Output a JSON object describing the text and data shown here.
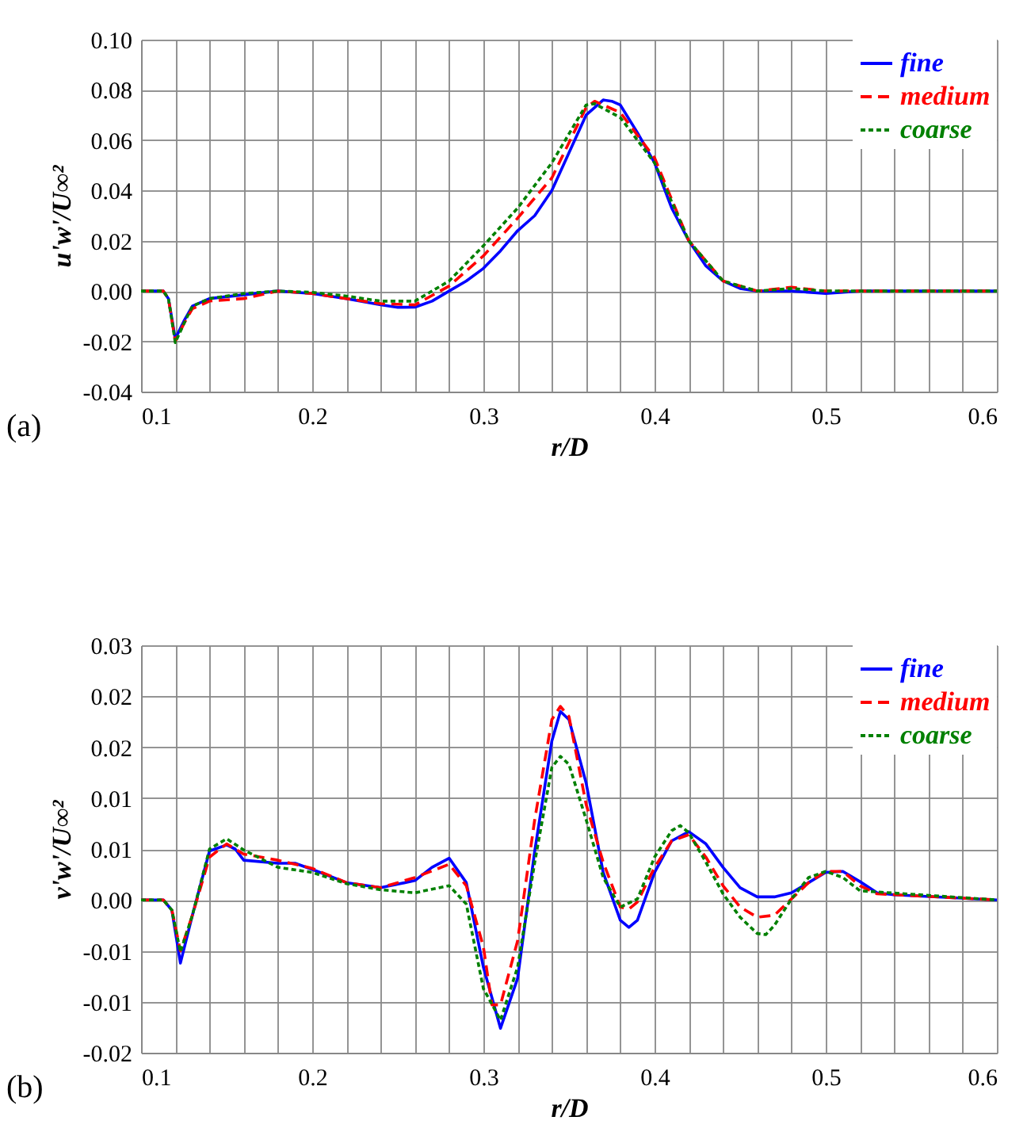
{
  "chart_data": [
    {
      "type": "line",
      "xlabel": "r/D",
      "ylabel": "u'w'/U∞²",
      "annotations": [
        "(a)"
      ],
      "legend": "top right",
      "grid": true,
      "xlim": [
        0.1,
        0.6
      ],
      "xticks": [
        0.1,
        {
          "value": 0.12,
          "label": null
        },
        {
          "value": 0.14,
          "label": null
        },
        {
          "value": 0.16,
          "label": null
        },
        {
          "value": 0.18,
          "label": null
        },
        0.2,
        {
          "value": 0.22,
          "label": null
        },
        {
          "value": 0.24,
          "label": null
        },
        {
          "value": 0.26,
          "label": null
        },
        {
          "value": 0.28,
          "label": null
        },
        0.3,
        {
          "value": 0.32,
          "label": null
        },
        {
          "value": 0.34,
          "label": null
        },
        {
          "value": 0.36,
          "label": null
        },
        {
          "value": 0.38,
          "label": null
        },
        0.4,
        {
          "value": 0.42,
          "label": null
        },
        {
          "value": 0.44,
          "label": null
        },
        {
          "value": 0.46,
          "label": null
        },
        {
          "value": 0.48,
          "label": null
        },
        0.5,
        {
          "value": 0.52,
          "label": null
        },
        {
          "value": 0.54,
          "label": null
        },
        {
          "value": 0.56,
          "label": null
        },
        {
          "value": 0.58,
          "label": null
        },
        0.6
      ],
      "ylim": [
        -0.04,
        0.1
      ],
      "yticks": [
        -0.04,
        -0.02,
        {
          "value": 0,
          "label": "0.00"
        },
        0.02,
        0.04,
        0.06,
        0.08,
        {
          "value": 0.1,
          "label": "0.10"
        }
      ],
      "series": [
        {
          "name": "fine",
          "color": "#0000ff",
          "line_style": "solid",
          "x": [
            0.1,
            0.113,
            0.116,
            0.12,
            0.125,
            0.13,
            0.14,
            0.16,
            0.18,
            0.2,
            0.22,
            0.24,
            0.25,
            0.26,
            0.27,
            0.28,
            0.29,
            0.3,
            0.31,
            0.32,
            0.33,
            0.34,
            0.35,
            0.36,
            0.37,
            0.375,
            0.38,
            0.39,
            0.4,
            0.41,
            0.42,
            0.43,
            0.44,
            0.45,
            0.46,
            0.48,
            0.5,
            0.52,
            0.6
          ],
          "values": [
            0,
            0,
            -0.003,
            -0.019,
            -0.012,
            -0.006,
            -0.003,
            -0.0015,
            0,
            -0.001,
            -0.003,
            -0.0055,
            -0.0065,
            -0.0064,
            -0.004,
            0,
            0.004,
            0.009,
            0.016,
            0.024,
            0.03,
            0.04,
            0.055,
            0.07,
            0.076,
            0.0755,
            0.074,
            0.063,
            0.051,
            0.033,
            0.02,
            0.01,
            0.004,
            0.001,
            0,
            0,
            -0.001,
            0,
            0
          ]
        },
        {
          "name": "medium",
          "color": "#ff0000",
          "line_style": "dashed",
          "x": [
            0.1,
            0.113,
            0.116,
            0.12,
            0.125,
            0.13,
            0.14,
            0.16,
            0.18,
            0.2,
            0.22,
            0.24,
            0.26,
            0.28,
            0.3,
            0.32,
            0.34,
            0.36,
            0.365,
            0.38,
            0.4,
            0.42,
            0.44,
            0.46,
            0.48,
            0.5,
            0.6
          ],
          "values": [
            0,
            0,
            -0.003,
            -0.02,
            -0.013,
            -0.007,
            -0.004,
            -0.003,
            0,
            -0.001,
            -0.003,
            -0.005,
            -0.0055,
            0.002,
            0.014,
            0.029,
            0.045,
            0.073,
            0.0755,
            0.071,
            0.053,
            0.02,
            0.004,
            0,
            0.0015,
            0,
            0
          ]
        },
        {
          "name": "coarse",
          "color": "#008000",
          "line_style": "dotted",
          "x": [
            0.1,
            0.113,
            0.116,
            0.12,
            0.125,
            0.13,
            0.14,
            0.16,
            0.18,
            0.2,
            0.22,
            0.24,
            0.26,
            0.28,
            0.3,
            0.32,
            0.34,
            0.36,
            0.365,
            0.38,
            0.4,
            0.42,
            0.44,
            0.46,
            0.48,
            0.5,
            0.6
          ],
          "values": [
            0,
            0,
            -0.003,
            -0.0205,
            -0.013,
            -0.006,
            -0.003,
            -0.001,
            0,
            -0.0005,
            -0.002,
            -0.004,
            -0.004,
            0.004,
            0.018,
            0.033,
            0.051,
            0.074,
            0.0745,
            0.069,
            0.051,
            0.02,
            0.004,
            0,
            0.001,
            0,
            0
          ]
        }
      ]
    },
    {
      "type": "line",
      "xlabel": "r/D",
      "ylabel": "v'w'/U∞²",
      "annotations": [
        "(b)"
      ],
      "legend": "top right",
      "grid": true,
      "xlim": [
        0.1,
        0.6
      ],
      "xticks": [
        0.1,
        {
          "value": 0.12,
          "label": null
        },
        {
          "value": 0.14,
          "label": null
        },
        {
          "value": 0.16,
          "label": null
        },
        {
          "value": 0.18,
          "label": null
        },
        0.2,
        {
          "value": 0.22,
          "label": null
        },
        {
          "value": 0.24,
          "label": null
        },
        {
          "value": 0.26,
          "label": null
        },
        {
          "value": 0.28,
          "label": null
        },
        0.3,
        {
          "value": 0.32,
          "label": null
        },
        {
          "value": 0.34,
          "label": null
        },
        {
          "value": 0.36,
          "label": null
        },
        {
          "value": 0.38,
          "label": null
        },
        0.4,
        {
          "value": 0.42,
          "label": null
        },
        {
          "value": 0.44,
          "label": null
        },
        {
          "value": 0.46,
          "label": null
        },
        {
          "value": 0.48,
          "label": null
        },
        0.5,
        {
          "value": 0.52,
          "label": null
        },
        {
          "value": 0.54,
          "label": null
        },
        {
          "value": 0.56,
          "label": null
        },
        {
          "value": 0.58,
          "label": null
        },
        0.6
      ],
      "ylim": [
        -0.015,
        0.025
      ],
      "yticks": [
        {
          "value": -0.015,
          "label": "-0.02"
        },
        {
          "value": -0.01,
          "label": "-0.01"
        },
        {
          "value": -0.005,
          "label": "-0.01"
        },
        {
          "value": 0,
          "label": "0.00"
        },
        {
          "value": 0.005,
          "label": "0.01"
        },
        {
          "value": 0.01,
          "label": "0.01"
        },
        {
          "value": 0.015,
          "label": "0.02"
        },
        {
          "value": 0.02,
          "label": "0.02"
        },
        {
          "value": 0.025,
          "label": "0.03"
        }
      ],
      "series": [
        {
          "name": "fine",
          "color": "#0000ff",
          "line_style": "solid",
          "x": [
            0.1,
            0.113,
            0.118,
            0.123,
            0.13,
            0.14,
            0.15,
            0.155,
            0.16,
            0.18,
            0.19,
            0.2,
            0.22,
            0.24,
            0.26,
            0.27,
            0.28,
            0.29,
            0.3,
            0.31,
            0.32,
            0.33,
            0.34,
            0.345,
            0.35,
            0.36,
            0.37,
            0.38,
            0.385,
            0.39,
            0.4,
            0.41,
            0.42,
            0.43,
            0.44,
            0.45,
            0.46,
            0.47,
            0.48,
            0.49,
            0.5,
            0.51,
            0.52,
            0.53,
            0.54,
            0.6
          ],
          "values": [
            0,
            0,
            -0.001,
            -0.0062,
            -0.0015,
            0.0048,
            0.0054,
            0.005,
            0.0039,
            0.0036,
            0.0036,
            0.003,
            0.0017,
            0.0012,
            0.0019,
            0.0032,
            0.0041,
            0.0017,
            -0.0066,
            -0.0126,
            -0.0077,
            0.0048,
            0.0156,
            0.0185,
            0.0177,
            0.0115,
            0.0027,
            -0.002,
            -0.0027,
            -0.002,
            0.0027,
            0.0058,
            0.0067,
            0.0055,
            0.0032,
            0.0012,
            0.0003,
            0.0003,
            0.0007,
            0.0017,
            0.0027,
            0.0028,
            0.0018,
            0.0007,
            0.0005,
            0
          ]
        },
        {
          "name": "medium",
          "color": "#ff0000",
          "line_style": "dashed",
          "x": [
            0.1,
            0.113,
            0.118,
            0.123,
            0.13,
            0.14,
            0.15,
            0.16,
            0.18,
            0.2,
            0.22,
            0.24,
            0.26,
            0.28,
            0.29,
            0.3,
            0.305,
            0.31,
            0.32,
            0.33,
            0.34,
            0.345,
            0.35,
            0.36,
            0.37,
            0.38,
            0.385,
            0.39,
            0.4,
            0.41,
            0.42,
            0.43,
            0.44,
            0.45,
            0.46,
            0.47,
            0.48,
            0.49,
            0.5,
            0.51,
            0.52,
            0.53,
            0.6
          ],
          "values": [
            0,
            0,
            -0.001,
            -0.005,
            -0.0015,
            0.0042,
            0.0055,
            0.0045,
            0.0039,
            0.0031,
            0.0017,
            0.0012,
            0.0022,
            0.0035,
            0.0014,
            -0.0046,
            -0.0103,
            -0.0103,
            -0.004,
            0.0079,
            0.0177,
            0.019,
            0.018,
            0.0094,
            0.0037,
            -0.0007,
            -0.0009,
            -0.0002,
            0.0032,
            0.0058,
            0.0064,
            0.0042,
            0.0014,
            -0.0007,
            -0.0017,
            -0.0015,
            0.0001,
            0.0017,
            0.0028,
            0.0028,
            0.0014,
            0.0006,
            0
          ]
        },
        {
          "name": "coarse",
          "color": "#008000",
          "line_style": "dotted",
          "x": [
            0.1,
            0.113,
            0.118,
            0.123,
            0.13,
            0.14,
            0.15,
            0.16,
            0.18,
            0.2,
            0.22,
            0.24,
            0.26,
            0.28,
            0.29,
            0.3,
            0.31,
            0.32,
            0.33,
            0.34,
            0.345,
            0.35,
            0.36,
            0.37,
            0.38,
            0.39,
            0.4,
            0.41,
            0.415,
            0.42,
            0.43,
            0.44,
            0.45,
            0.46,
            0.465,
            0.47,
            0.48,
            0.49,
            0.5,
            0.51,
            0.52,
            0.6
          ],
          "values": [
            0,
            0,
            -0.001,
            -0.0051,
            -0.0015,
            0.005,
            0.006,
            0.0049,
            0.0032,
            0.0027,
            0.0016,
            0.001,
            0.0007,
            0.0014,
            -0.0004,
            -0.0087,
            -0.0118,
            -0.0066,
            0.0037,
            0.013,
            0.0141,
            0.0133,
            0.0079,
            0.0022,
            -0.0007,
            0.0001,
            0.0042,
            0.0068,
            0.0073,
            0.0066,
            0.0037,
            0.0006,
            -0.0017,
            -0.0033,
            -0.0034,
            -0.0025,
            0.0001,
            0.0022,
            0.0028,
            0.0022,
            0.0009,
            0
          ]
        }
      ]
    }
  ]
}
